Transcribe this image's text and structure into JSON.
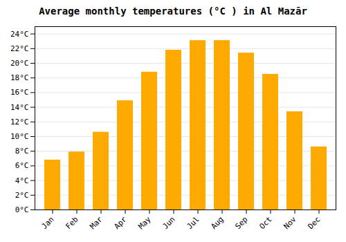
{
  "chart_data": {
    "type": "bar",
    "title": "Average monthly temperatures (°C ) in Al Mazār",
    "categories": [
      "Jan",
      "Feb",
      "Mar",
      "Apr",
      "May",
      "Jun",
      "Jul",
      "Aug",
      "Sep",
      "Oct",
      "Nov",
      "Dec"
    ],
    "values": [
      6.8,
      7.9,
      10.6,
      14.9,
      18.8,
      21.8,
      23.1,
      23.1,
      21.4,
      18.5,
      13.4,
      8.6
    ],
    "color": "#FFAA00",
    "ylim": [
      0,
      25
    ],
    "yticks": [
      {
        "value": 0,
        "label": "0°C"
      },
      {
        "value": 2,
        "label": "2°C"
      },
      {
        "value": 4,
        "label": "4°C"
      },
      {
        "value": 6,
        "label": "6°C"
      },
      {
        "value": 8,
        "label": "8°C"
      },
      {
        "value": 10,
        "label": "10°C"
      },
      {
        "value": 12,
        "label": "12°C"
      },
      {
        "value": 14,
        "label": "14°C"
      },
      {
        "value": 16,
        "label": "16°C"
      },
      {
        "value": 18,
        "label": "18°C"
      },
      {
        "value": 20,
        "label": "20°C"
      },
      {
        "value": 22,
        "label": "22°C"
      },
      {
        "value": 24,
        "label": "24°C"
      }
    ],
    "grid": true
  }
}
